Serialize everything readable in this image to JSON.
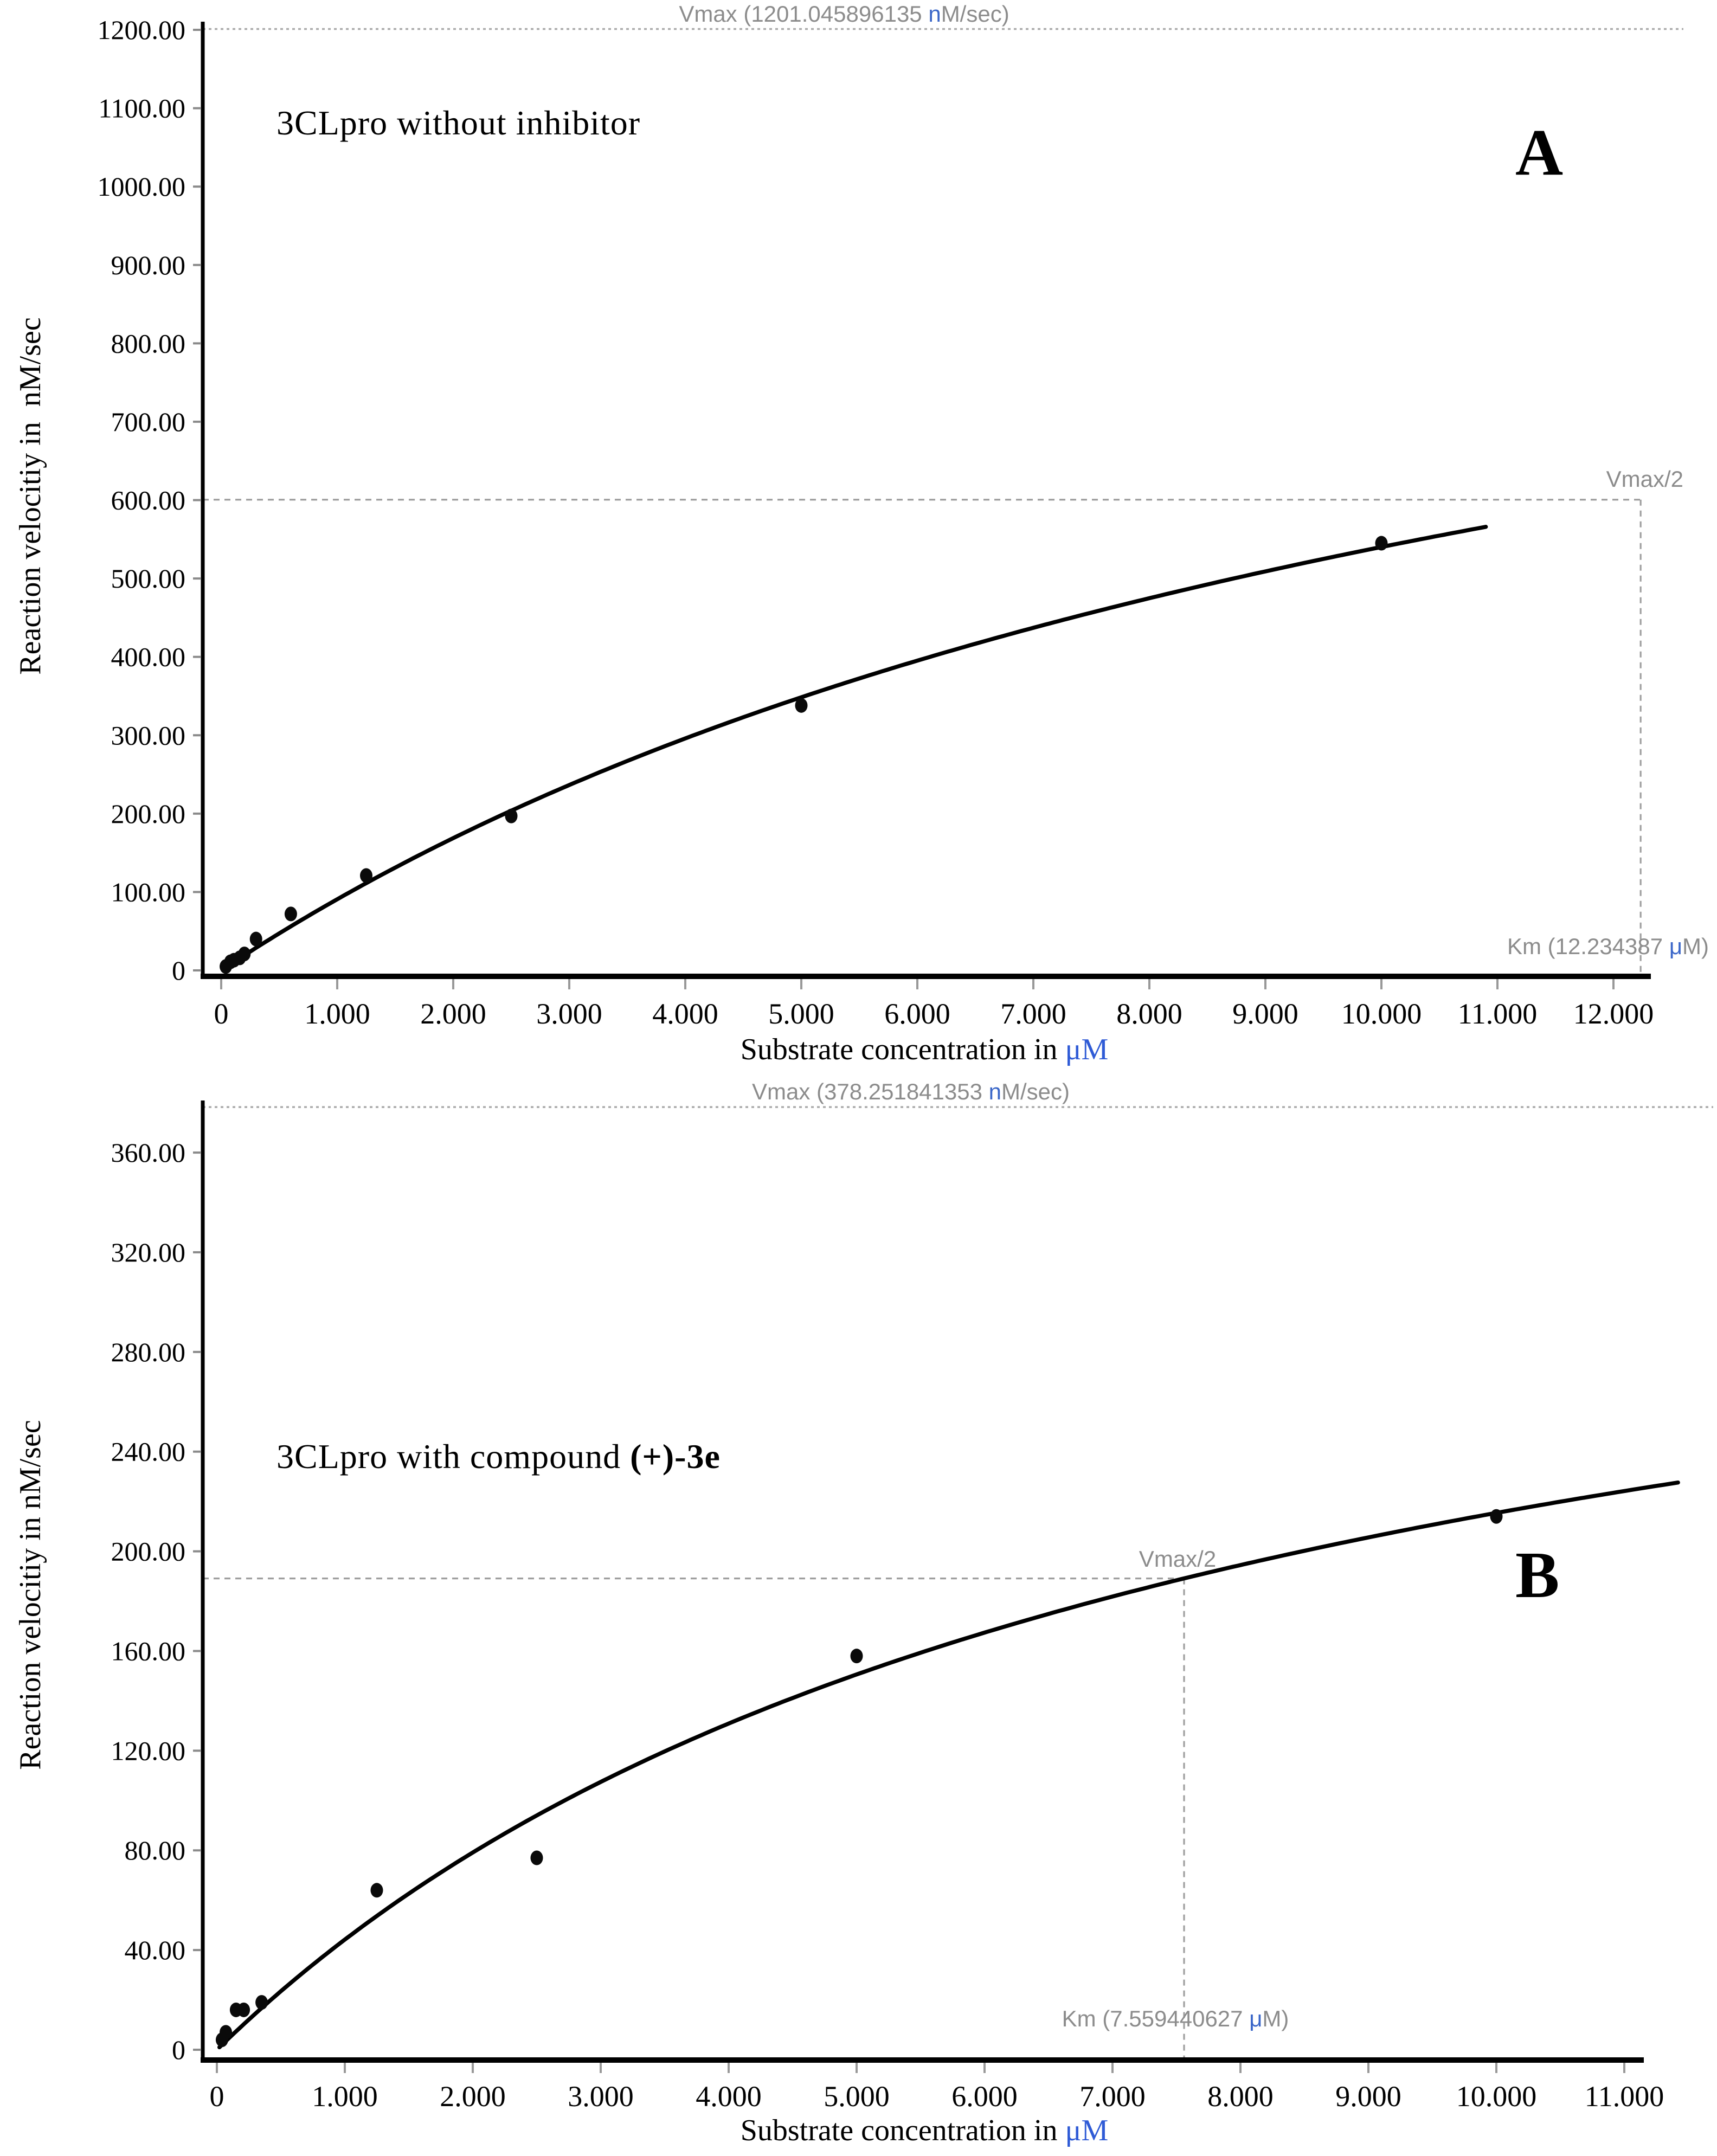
{
  "figure": {
    "background": "#ffffff",
    "text_color": "#000000",
    "annotation_color": "#8c8c8c",
    "highlight_color": "#3a66c8",
    "curve_color": "#000000",
    "marker_color": "#0a0a0a",
    "dashed_line_color": "#a6a6a6"
  },
  "chart_data": [
    {
      "type": "scatter",
      "panel_label": "A",
      "title": {
        "main": "3CLpro without inhibitor",
        "bold": ""
      },
      "xlabel": {
        "pre": "Substrate concentration in ",
        "hl": "μM",
        "post": ""
      },
      "ylabel": "Reaction velocitiy in  nM/sec",
      "xlim": [
        0,
        12.55
      ],
      "ylim": [
        0,
        1225
      ],
      "grid": false,
      "legend": "none",
      "fit": {
        "model": "michaelis-menten",
        "vmax": 1201.045896135,
        "km": 12.234387,
        "curve_x_min": 0.02,
        "curve_x_max": 10.9
      },
      "annotations": {
        "vmax_label": {
          "pre": "Vmax (1201.045896135 ",
          "hl": "n",
          "post": "M/sec)"
        },
        "vmax_half_label": "Vmax/2",
        "km_label": {
          "pre": "Km (12.234387 ",
          "hl": "μ",
          "post": "M)"
        }
      },
      "x_ticks": [
        {
          "value": 0,
          "label": "0"
        },
        {
          "value": 1,
          "label": "1.000"
        },
        {
          "value": 2,
          "label": "2.000"
        },
        {
          "value": 3,
          "label": "3.000"
        },
        {
          "value": 4,
          "label": "4.000"
        },
        {
          "value": 5,
          "label": "5.000"
        },
        {
          "value": 6,
          "label": "6.000"
        },
        {
          "value": 7,
          "label": "7.000"
        },
        {
          "value": 8,
          "label": "8.000"
        },
        {
          "value": 9,
          "label": "9.000"
        },
        {
          "value": 10,
          "label": "10.000"
        },
        {
          "value": 11,
          "label": "11.000"
        },
        {
          "value": 12,
          "label": "12.000"
        }
      ],
      "y_ticks": [
        {
          "value": 1200,
          "label": "1200.00"
        },
        {
          "value": 1100,
          "label": "1100.00"
        },
        {
          "value": 1000,
          "label": "1000.00"
        },
        {
          "value": 900,
          "label": "900.00"
        },
        {
          "value": 800,
          "label": "800.00"
        },
        {
          "value": 700,
          "label": "700.00"
        },
        {
          "value": 600,
          "label": "600.00"
        },
        {
          "value": 500,
          "label": "500.00"
        },
        {
          "value": 400,
          "label": "400.00"
        },
        {
          "value": 300,
          "label": "300.00"
        },
        {
          "value": 200,
          "label": "200.00"
        },
        {
          "value": 100,
          "label": "100.00"
        },
        {
          "value": 0,
          "label": "0"
        }
      ],
      "points": [
        [
          0.04,
          5
        ],
        [
          0.08,
          11
        ],
        [
          0.11,
          13
        ],
        [
          0.16,
          16
        ],
        [
          0.2,
          21
        ],
        [
          0.3,
          40
        ],
        [
          0.6,
          72
        ],
        [
          1.25,
          121
        ],
        [
          2.5,
          197
        ],
        [
          5,
          338
        ],
        [
          10,
          545
        ]
      ]
    },
    {
      "type": "scatter",
      "panel_label": "B",
      "title": {
        "main": "3CLpro with compound ",
        "bold": "(+)-3e"
      },
      "xlabel": {
        "pre": "Substrate concentration in ",
        "hl": "μM",
        "post": ""
      },
      "ylabel": "Reaction velocitiy in nM/sec",
      "xlim": [
        0,
        11.6
      ],
      "ylim": [
        0,
        382
      ],
      "grid": false,
      "legend": "none",
      "fit": {
        "model": "michaelis-menten",
        "vmax": 378.251841353,
        "km": 7.559440627,
        "curve_x_min": 0.02,
        "curve_x_max": 11.45
      },
      "annotations": {
        "vmax_label": {
          "pre": "Vmax (378.251841353 ",
          "hl": "n",
          "post": "M/sec)"
        },
        "vmax_half_label": "Vmax/2",
        "km_label": {
          "pre": "Km (7.559440627 ",
          "hl": "μ",
          "post": "M)"
        }
      },
      "x_ticks": [
        {
          "value": 0,
          "label": "0"
        },
        {
          "value": 1,
          "label": "1.000"
        },
        {
          "value": 2,
          "label": "2.000"
        },
        {
          "value": 3,
          "label": "3.000"
        },
        {
          "value": 4,
          "label": "4.000"
        },
        {
          "value": 5,
          "label": "5.000"
        },
        {
          "value": 6,
          "label": "6.000"
        },
        {
          "value": 7,
          "label": "7.000"
        },
        {
          "value": 8,
          "label": "8.000"
        },
        {
          "value": 9,
          "label": "9.000"
        },
        {
          "value": 10,
          "label": "10.000"
        },
        {
          "value": 11,
          "label": "11.000"
        }
      ],
      "y_ticks": [
        {
          "value": 360,
          "label": "360.00"
        },
        {
          "value": 320,
          "label": "320.00"
        },
        {
          "value": 280,
          "label": "280.00"
        },
        {
          "value": 240,
          "label": "240.00"
        },
        {
          "value": 200,
          "label": "200.00"
        },
        {
          "value": 160,
          "label": "160.00"
        },
        {
          "value": 120,
          "label": "120.00"
        },
        {
          "value": 80,
          "label": "80.00"
        },
        {
          "value": 40,
          "label": "40.00"
        },
        {
          "value": 0,
          "label": "0"
        }
      ],
      "points": [
        [
          0.04,
          4
        ],
        [
          0.07,
          7
        ],
        [
          0.15,
          16
        ],
        [
          0.21,
          16
        ],
        [
          0.35,
          19
        ],
        [
          1.25,
          64
        ],
        [
          2.5,
          77
        ],
        [
          5,
          158
        ],
        [
          10,
          214
        ]
      ]
    }
  ]
}
